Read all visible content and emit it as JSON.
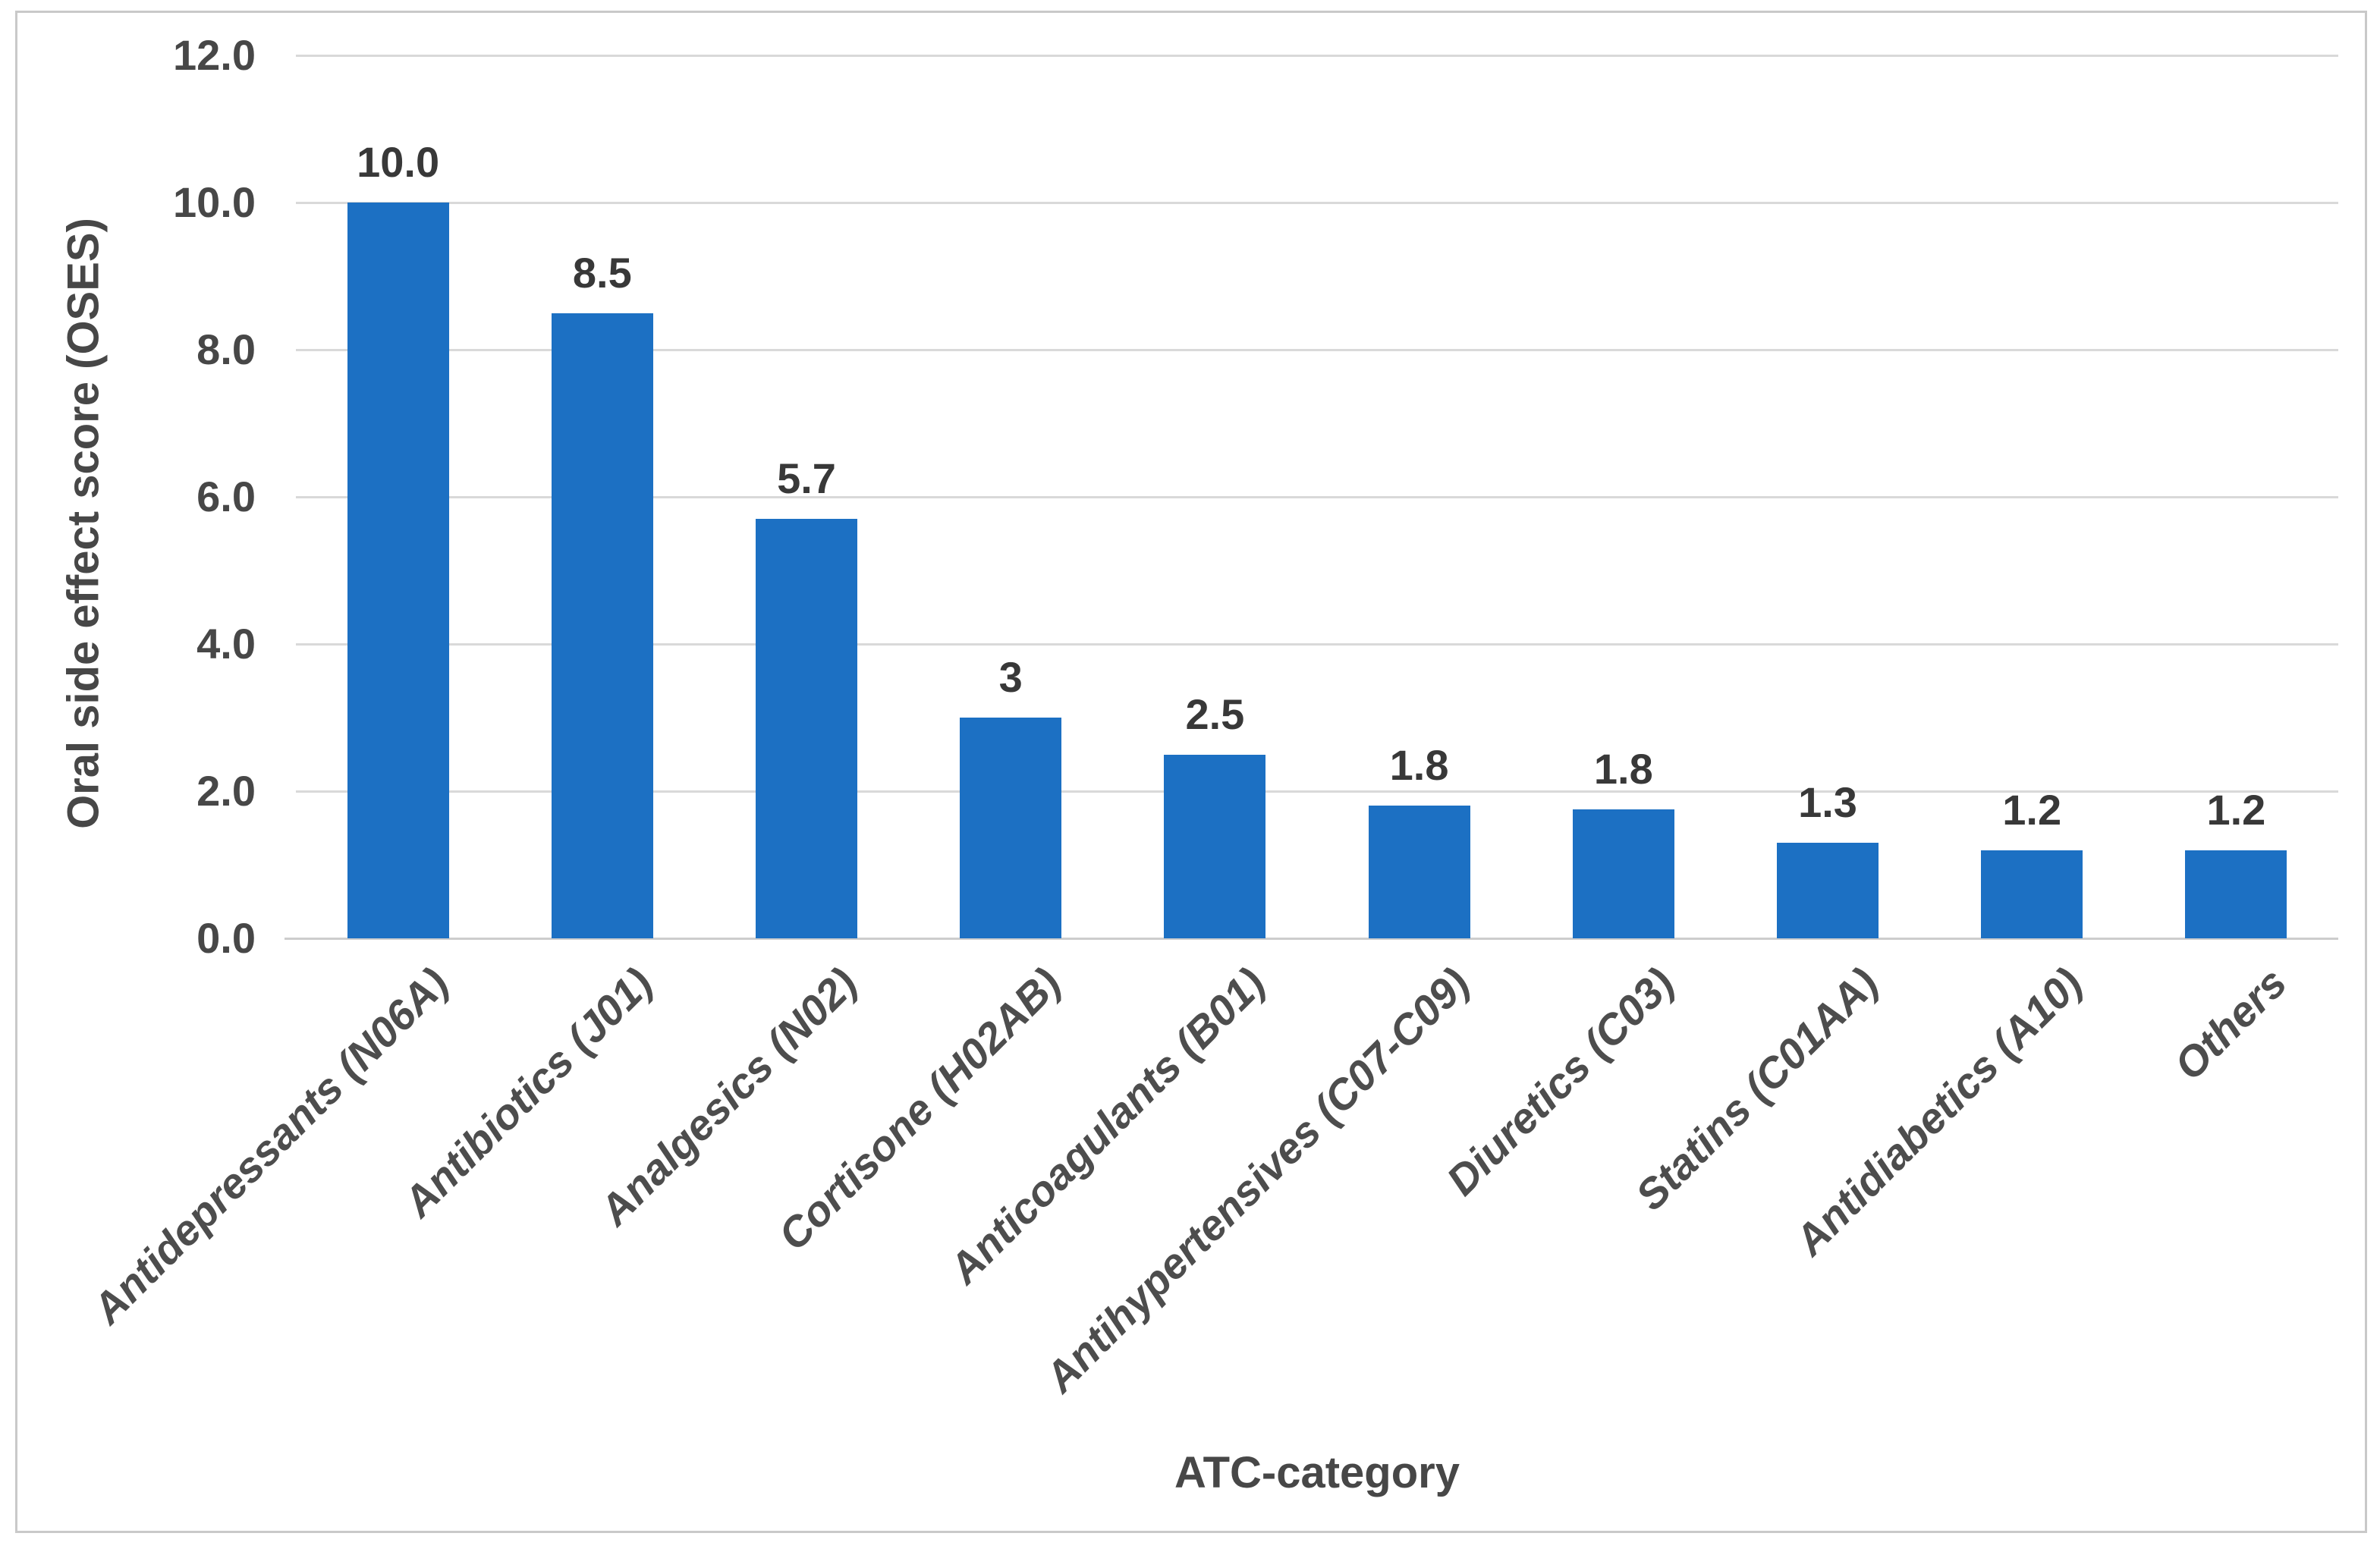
{
  "figure": {
    "background": "#FFFFFF",
    "border_color": "#C9C9C9"
  },
  "chart_data": {
    "type": "bar",
    "title": "",
    "xlabel": "ATC-category",
    "ylabel": "Oral side effect score (OSES)",
    "categories": [
      "Antidepressants (N06A)",
      "Antibiotics (J01)",
      "Analgesics (N02)",
      "Cortisone (H02AB)",
      "Anticoagulants (B01)",
      "Antihypertensives (C07-C09)",
      "Diuretics (C03)",
      "Statins (C01AA)",
      "Antidiabetics (A10)",
      "Others"
    ],
    "values": [
      10.0,
      8.5,
      5.7,
      3,
      2.5,
      1.8,
      1.75,
      1.3,
      1.2,
      1.2
    ],
    "data_labels": [
      "10.0",
      "8.5",
      "5.7",
      "3",
      "2.5",
      "1.8",
      "1.8",
      "1.3",
      "1.2",
      "1.2"
    ],
    "y_ticks": [
      "12.0",
      "10.0",
      "8.0",
      "6.0",
      "4.0",
      "2.0",
      "0.0"
    ],
    "y_tick_values": [
      12,
      10,
      8,
      6,
      4,
      2,
      0
    ],
    "ylim": [
      0,
      12
    ],
    "grid": "horizontal-only",
    "legend": "none",
    "bar_color": "#1C70C3",
    "gridline_color": "#D9D9D9",
    "axis_line_color": "#CDCDCD",
    "tick_label_color": "#474747",
    "data_label_color": "#383838",
    "category_label_color": "#4D4D4D"
  }
}
